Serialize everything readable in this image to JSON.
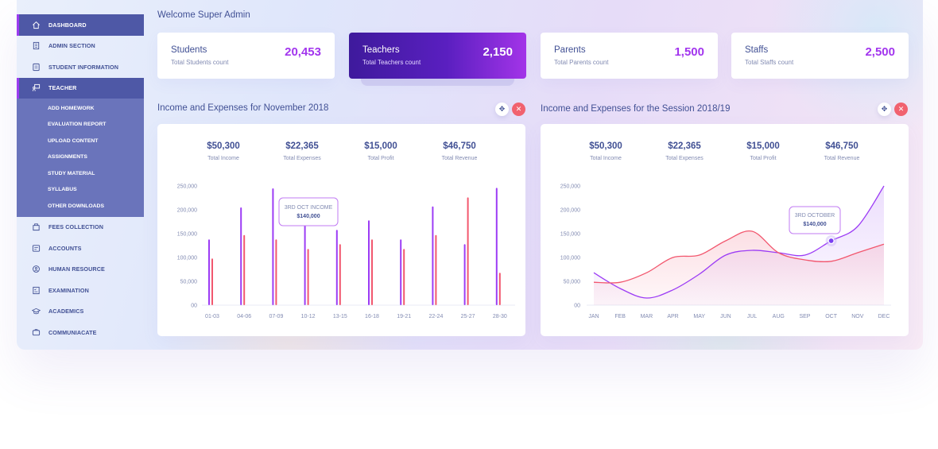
{
  "sidebar": {
    "items": [
      {
        "label": "DASHBOARD",
        "icon": "home-icon",
        "active": true
      },
      {
        "label": "ADMIN SECTION",
        "icon": "building-icon"
      },
      {
        "label": "STUDENT INFORMATION",
        "icon": "id-card-icon"
      },
      {
        "label": "TEACHER",
        "icon": "teacher-icon",
        "active": true
      }
    ],
    "teacher_submenu": [
      "ADD HOMEWORK",
      "EVALUATION REPORT",
      "UPLOAD CONTENT",
      "ASSIGNMENTS",
      "STUDY MATERIAL",
      "SYLLABUS",
      "OTHER DOWNLOADS"
    ],
    "items_after": [
      {
        "label": "FEES COLLECTION",
        "icon": "fees-icon"
      },
      {
        "label": "ACCOUNTS",
        "icon": "accounts-icon"
      },
      {
        "label": "HUMAN RESOURCE",
        "icon": "human-resource-icon"
      },
      {
        "label": "EXAMINATION",
        "icon": "exam-icon"
      },
      {
        "label": "ACADEMICS",
        "icon": "graduation-cap-icon"
      },
      {
        "label": "COMMUNIACATE",
        "icon": "communicate-icon"
      }
    ]
  },
  "header": {
    "welcome": "Welcome Super Admin"
  },
  "stats": [
    {
      "label": "Students",
      "sub": "Total Students count",
      "value": "20,453"
    },
    {
      "label": "Teachers",
      "sub": "Total Teachers count",
      "value": "2,150"
    },
    {
      "label": "Parents",
      "sub": "Total Parents count",
      "value": "1,500"
    },
    {
      "label": "Staffs",
      "sub": "Total Staffs count",
      "value": "2,500"
    }
  ],
  "colors": {
    "accent": "#a235ee",
    "primary": "#415094",
    "income": "#9c3cf5",
    "expense": "#f2576e"
  },
  "panels": [
    {
      "title": "Income and Expenses for November 2018",
      "summary": [
        {
          "amount": "$50,300",
          "caption": "Total Income"
        },
        {
          "amount": "$22,365",
          "caption": "Total Expenses"
        },
        {
          "amount": "$15,000",
          "caption": "Total Profit"
        },
        {
          "amount": "$46,750",
          "caption": "Total Revenue"
        }
      ]
    },
    {
      "title": "Income and Expenses for the Session 2018/19",
      "summary": [
        {
          "amount": "$50,300",
          "caption": "Total Income"
        },
        {
          "amount": "$22,365",
          "caption": "Total Expenses"
        },
        {
          "amount": "$15,000",
          "caption": "Total Profit"
        },
        {
          "amount": "$46,750",
          "caption": "Total Revenue"
        }
      ]
    }
  ],
  "chart_data": [
    {
      "type": "bar",
      "categories": [
        "01-03",
        "04-06",
        "07-09",
        "10-12",
        "13-15",
        "16-18",
        "19-21",
        "22-24",
        "25-27",
        "28-30"
      ],
      "series": [
        {
          "values": [
            138000,
            205000,
            245000,
            175000,
            158000,
            178000,
            138000,
            207000,
            128000,
            246000
          ]
        },
        {
          "values": [
            98000,
            147000,
            138000,
            118000,
            128000,
            138000,
            118000,
            147000,
            226000,
            68000
          ]
        }
      ],
      "yticks": [
        "250,000",
        "200,000",
        "150,000",
        "100,000",
        "50,000",
        "00"
      ],
      "ylim": [
        0,
        250000
      ],
      "tooltip": {
        "title": "3RD OCT INCOME",
        "value": "$140,000"
      },
      "grid": false
    },
    {
      "type": "area",
      "categories": [
        "JAN",
        "FEB",
        "MAR",
        "APR",
        "MAY",
        "JUN",
        "JUL",
        "AUG",
        "SEP",
        "OCT",
        "NOV",
        "DEC"
      ],
      "series": [
        {
          "values": [
            68000,
            35000,
            15000,
            32000,
            65000,
            105000,
            115000,
            110000,
            105000,
            135000,
            165000,
            250000
          ]
        },
        {
          "values": [
            48000,
            48000,
            68000,
            100000,
            105000,
            135000,
            155000,
            110000,
            95000,
            92000,
            110000,
            128000
          ]
        }
      ],
      "yticks": [
        "250,000",
        "200,000",
        "150,000",
        "100,000",
        "50,000",
        "00"
      ],
      "ylim": [
        0,
        250000
      ],
      "tooltip": {
        "title": "3RD OCTOBER",
        "value": "$140,000"
      },
      "grid": false
    }
  ]
}
